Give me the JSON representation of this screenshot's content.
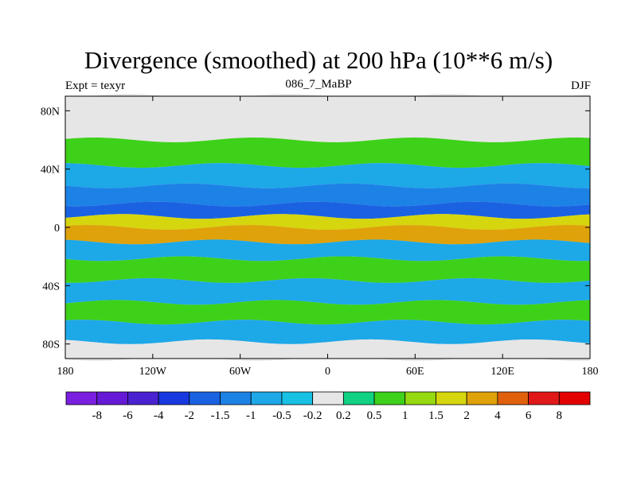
{
  "chart_data": {
    "type": "heatmap",
    "title": "Divergence (smoothed) at 200 hPa (10**6 m/s)",
    "left_label": "Expt = texyr",
    "center_label": "086_7_MaBP",
    "right_label": "DJF",
    "x_ticks": [
      {
        "lon": -180,
        "label": "180"
      },
      {
        "lon": -120,
        "label": "120W"
      },
      {
        "lon": -60,
        "label": "60W"
      },
      {
        "lon": 0,
        "label": "0"
      },
      {
        "lon": 60,
        "label": "60E"
      },
      {
        "lon": 120,
        "label": "120E"
      },
      {
        "lon": 180,
        "label": "180"
      }
    ],
    "y_ticks": [
      {
        "lat": 80,
        "label": "80N"
      },
      {
        "lat": 40,
        "label": "40N"
      },
      {
        "lat": 0,
        "label": "0"
      },
      {
        "lat": -40,
        "label": "40S"
      },
      {
        "lat": -80,
        "label": "80S"
      }
    ],
    "xlim": [
      -180,
      180
    ],
    "ylim": [
      -90,
      90
    ],
    "levels": [
      "-8",
      "-6",
      "-4",
      "-2",
      "-1.5",
      "-1",
      "-0.5",
      "-0.2",
      "0.2",
      "0.5",
      "1",
      "1.5",
      "2",
      "4",
      "6",
      "8"
    ],
    "colors": [
      "#7a1fe0",
      "#6619d6",
      "#4a22d0",
      "#1838e0",
      "#1a62e2",
      "#1d82e6",
      "#1da8e8",
      "#18c0e4",
      "#e6e6e6",
      "#10d282",
      "#3ed11a",
      "#96d812",
      "#d6d60e",
      "#dfa20a",
      "#e0600c",
      "#e11818",
      "#e30000"
    ],
    "bands": [
      {
        "lat": 70,
        "value": 0.1
      },
      {
        "lat": 50,
        "value": 0.8
      },
      {
        "lat": 35,
        "value": -0.6
      },
      {
        "lat": 22,
        "value": -1.2
      },
      {
        "lat": 10,
        "value": -1.6
      },
      {
        "lat": 5,
        "value": 1.6
      },
      {
        "lat": -5,
        "value": 2.2
      },
      {
        "lat": -15,
        "value": -1.0
      },
      {
        "lat": -28,
        "value": 0.9
      },
      {
        "lat": -45,
        "value": -0.8
      },
      {
        "lat": -58,
        "value": 0.8
      },
      {
        "lat": -72,
        "value": -0.6
      },
      {
        "lat": -85,
        "value": 0.1
      }
    ]
  }
}
